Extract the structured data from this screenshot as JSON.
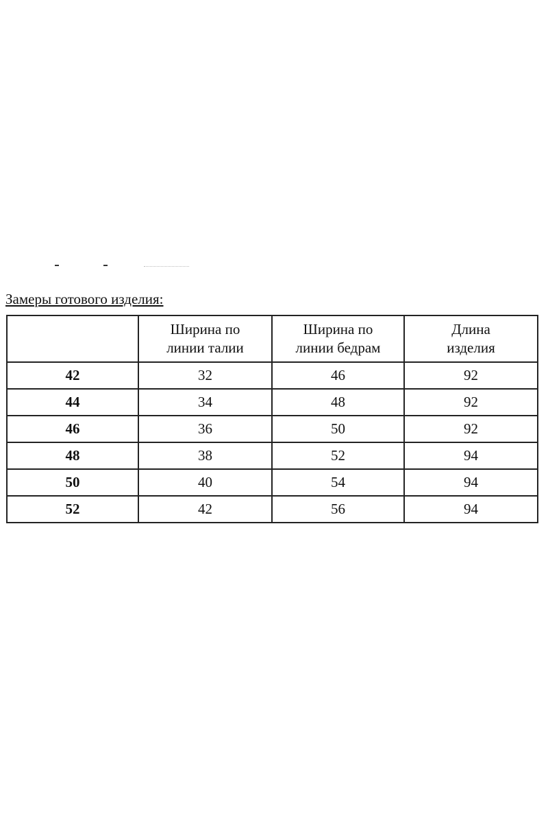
{
  "title": "Замеры готового изделия:",
  "table": {
    "headers": [
      "",
      "Ширина по линии талии",
      "Ширина по линии бедрам",
      "Длина изделия"
    ],
    "header_lines": [
      [
        "",
        ""
      ],
      [
        "Ширина по",
        "линии талии"
      ],
      [
        "Ширина по",
        "линии бедрам"
      ],
      [
        "Длина",
        "изделия"
      ]
    ],
    "rows": [
      [
        "42",
        "32",
        "46",
        "92"
      ],
      [
        "44",
        "34",
        "48",
        "92"
      ],
      [
        "46",
        "36",
        "50",
        "92"
      ],
      [
        "48",
        "38",
        "52",
        "94"
      ],
      [
        "50",
        "40",
        "54",
        "94"
      ],
      [
        "52",
        "42",
        "56",
        "94"
      ]
    ]
  }
}
